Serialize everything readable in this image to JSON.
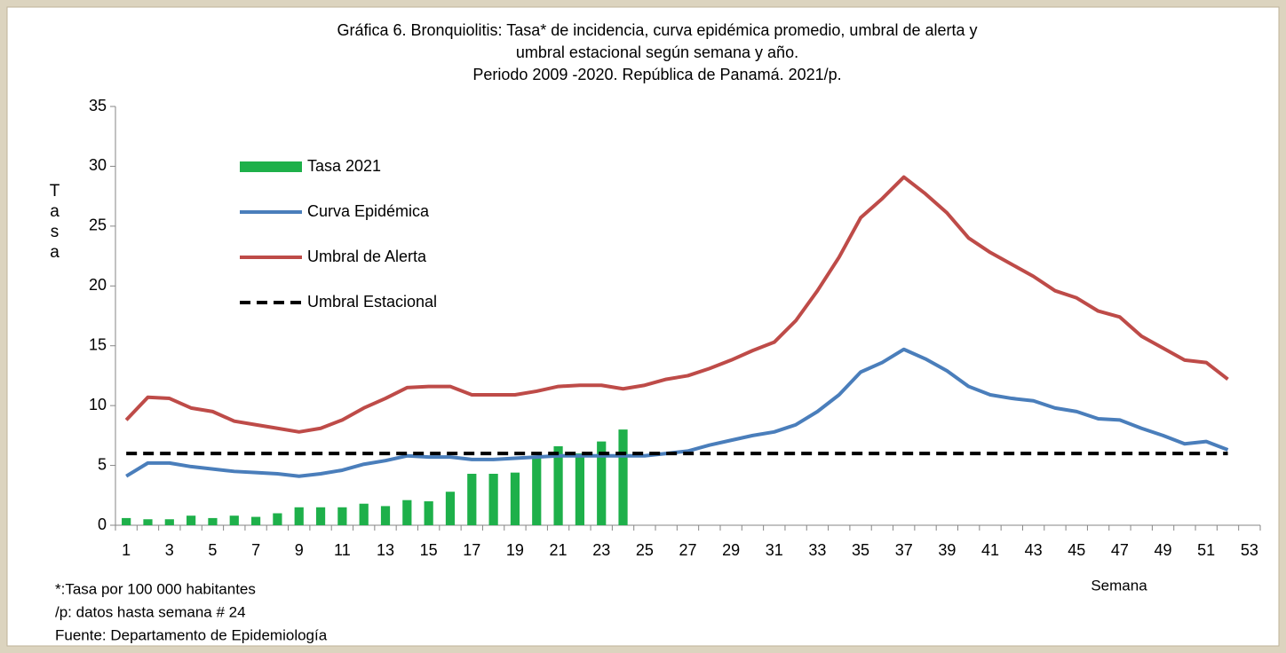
{
  "chart_data": {
    "type": "combo",
    "title": [
      "Gráfica 6. Bronquiolitis: Tasa* de incidencia, curva epidémica promedio, umbral de alerta   y",
      "umbral estacional según semana y año.",
      "Periodo 2009 -2020. República de Panamá. 2021/p."
    ],
    "y_label": "Tasa",
    "x_label": "Semana",
    "footnotes": [
      "*:Tasa por 100 000 habitantes",
      "/p: datos hasta semana  # 24",
      "Fuente: Departamento de Epidemiología"
    ],
    "categories": [
      "1",
      null,
      "3",
      null,
      "5",
      null,
      "7",
      null,
      "9",
      null,
      "11",
      null,
      "13",
      null,
      "15",
      null,
      "17",
      null,
      "19",
      null,
      "21",
      null,
      "23",
      null,
      "25",
      null,
      "27",
      null,
      "29",
      null,
      "31",
      null,
      "33",
      null,
      "35",
      null,
      "37",
      null,
      "39",
      null,
      "41",
      null,
      "43",
      null,
      "45",
      null,
      "47",
      null,
      "49",
      null,
      "51",
      null,
      "53"
    ],
    "ylim": [
      0,
      35
    ],
    "yticks": [
      0,
      5,
      10,
      15,
      20,
      25,
      30,
      35
    ],
    "legend": "upper left",
    "series": [
      {
        "name": "Tasa 2021",
        "type": "bar",
        "color": "#1eb04a",
        "values": [
          0.6,
          0.5,
          0.5,
          0.8,
          0.6,
          0.8,
          0.7,
          1.0,
          1.5,
          1.5,
          1.5,
          1.8,
          1.6,
          2.1,
          2.0,
          2.8,
          4.3,
          4.3,
          4.4,
          5.6,
          6.6,
          6.0,
          7.0,
          8.0,
          null,
          null,
          null,
          null,
          null,
          null,
          null,
          null,
          null,
          null,
          null,
          null,
          null,
          null,
          null,
          null,
          null,
          null,
          null,
          null,
          null,
          null,
          null,
          null,
          null,
          null,
          null,
          null,
          null
        ]
      },
      {
        "name": "Curva Epidémica",
        "type": "line",
        "color": "#4a7ebb",
        "values": [
          4.1,
          5.2,
          5.2,
          4.9,
          4.7,
          4.5,
          4.4,
          4.3,
          4.1,
          4.3,
          4.6,
          5.1,
          5.4,
          5.8,
          5.7,
          5.7,
          5.5,
          5.5,
          5.6,
          5.7,
          5.8,
          5.8,
          5.8,
          5.8,
          5.8,
          6.0,
          6.2,
          6.7,
          7.1,
          7.5,
          7.8,
          8.4,
          9.5,
          10.9,
          12.8,
          13.6,
          14.7,
          13.9,
          12.9,
          11.6,
          10.9,
          10.6,
          10.4,
          9.8,
          9.5,
          8.9,
          8.8,
          8.1,
          7.5,
          6.8,
          7.0,
          6.3,
          null
        ]
      },
      {
        "name": "Umbral de Alerta",
        "type": "line",
        "color": "#be4b48",
        "values": [
          8.8,
          10.7,
          10.6,
          9.8,
          9.5,
          8.7,
          8.4,
          8.1,
          7.8,
          8.1,
          8.8,
          9.8,
          10.6,
          11.5,
          11.6,
          11.6,
          10.9,
          10.9,
          10.9,
          11.2,
          11.6,
          11.7,
          11.7,
          11.4,
          11.7,
          12.2,
          12.5,
          13.1,
          13.8,
          14.6,
          15.3,
          17.1,
          19.6,
          22.4,
          25.7,
          27.3,
          29.1,
          27.7,
          26.1,
          24.0,
          22.8,
          21.8,
          20.8,
          19.6,
          19.0,
          17.9,
          17.4,
          15.8,
          14.8,
          13.8,
          13.6,
          12.2,
          null
        ]
      },
      {
        "name": "Umbral Estacional",
        "type": "line",
        "color": "#000000",
        "dash": true,
        "values": [
          6,
          6,
          6,
          6,
          6,
          6,
          6,
          6,
          6,
          6,
          6,
          6,
          6,
          6,
          6,
          6,
          6,
          6,
          6,
          6,
          6,
          6,
          6,
          6,
          6,
          6,
          6,
          6,
          6,
          6,
          6,
          6,
          6,
          6,
          6,
          6,
          6,
          6,
          6,
          6,
          6,
          6,
          6,
          6,
          6,
          6,
          6,
          6,
          6,
          6,
          6,
          6,
          null
        ]
      }
    ]
  }
}
